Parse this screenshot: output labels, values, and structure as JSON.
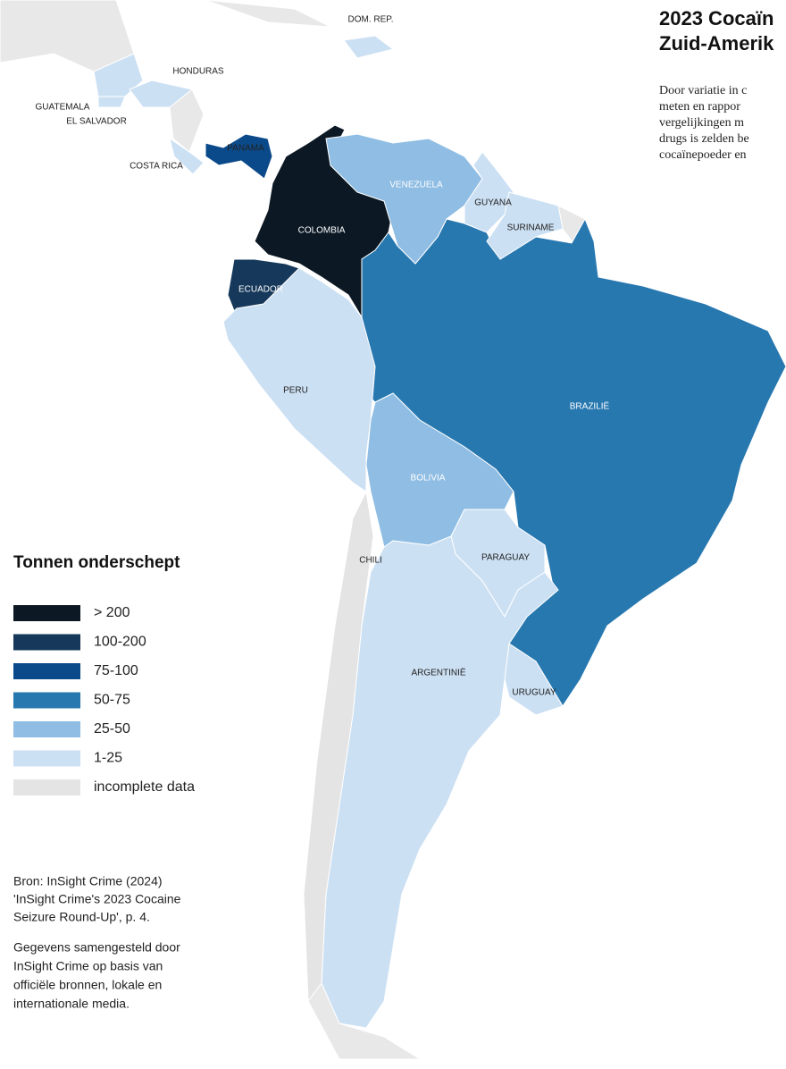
{
  "title_lines": [
    "2023 Cocaïn",
    "Zuid-Amerik"
  ],
  "intro_lines": [
    "Door variatie in c",
    "meten en rappor",
    "vergelijkingen m",
    "drugs is zelden be",
    "cocaïnepoeder en"
  ],
  "legend": {
    "title": "Tonnen onderschept",
    "items": [
      {
        "label": "> 200",
        "color": "#0c1824"
      },
      {
        "label": "100-200",
        "color": "#16385a"
      },
      {
        "label": "75-100",
        "color": "#0b4a8a"
      },
      {
        "label": "50-75",
        "color": "#2878b0"
      },
      {
        "label": "25-50",
        "color": "#8fbde3"
      },
      {
        "label": "1-25",
        "color": "#cce0f3"
      },
      {
        "label": "incomplete data",
        "color": "#e4e4e4"
      }
    ]
  },
  "countries": [
    {
      "label": "COLOMBIA",
      "class": 0
    },
    {
      "label": "ECUADOR",
      "class": 1
    },
    {
      "label": "PANAMA",
      "class": 2
    },
    {
      "label": "BRAZILIË",
      "class": 3
    },
    {
      "label": "VENEZUELA",
      "class": 4
    },
    {
      "label": "BOLIVIA",
      "class": 4
    },
    {
      "label": "GUYANA",
      "class": 5
    },
    {
      "label": "SURINAME",
      "class": 5
    },
    {
      "label": "PERU",
      "class": 5
    },
    {
      "label": "PARAGUAY",
      "class": 5
    },
    {
      "label": "ARGENTINIË",
      "class": 5
    },
    {
      "label": "URUGUAY",
      "class": 5
    },
    {
      "label": "GUATEMALA",
      "class": 5
    },
    {
      "label": "EL SALVADOR",
      "class": 5
    },
    {
      "label": "HONDURAS",
      "class": 5
    },
    {
      "label": "COSTA RICA",
      "class": 5
    },
    {
      "label": "DOM. REP.",
      "class": 5
    },
    {
      "label": "CHILI",
      "class": 6
    }
  ],
  "source_lines": [
    "Bron: InSight Crime (2024)",
    "'InSight Crime's 2023 Cocaine",
    "Seizure Round-Up', p. 4."
  ],
  "note_lines": [
    "Gegevens samengesteld door",
    "InSight Crime op basis van",
    "officiële bronnen, lokale en",
    "internationale media."
  ]
}
